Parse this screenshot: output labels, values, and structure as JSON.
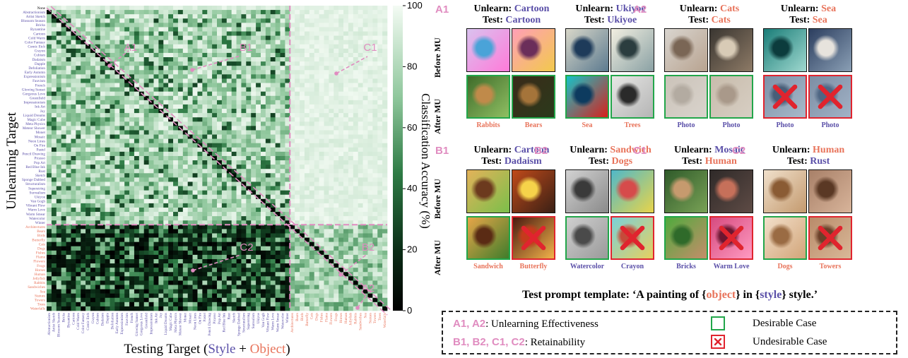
{
  "heatmap": {
    "row_styles": [
      "None",
      "Abstractionism",
      "Artist Sketch",
      "Blossom Season",
      "Bricks",
      "Byzantine",
      "Cartoon",
      "Cold Warm",
      "Color Fantasy",
      "Comic Etch",
      "Crayon",
      "Cubism",
      "Dadaism",
      "Dapple",
      "Defoliation",
      "Early Autumn",
      "Expressionism",
      "Fauvism",
      "French",
      "Glowing Sunset",
      "Gorgeous Love",
      "Greenfield",
      "Impressionism",
      "Ink Art",
      "Joy",
      "Liquid Dreams",
      "Magic Cube",
      "Meta Physics",
      "Meteor Shower",
      "Monet",
      "Mosaic",
      "Neon Lines",
      "On Fire",
      "Pastel",
      "Pencil Drawing",
      "Picasso",
      "Pop Art",
      "Red Blue Ink",
      "Rust",
      "Sketch",
      "Sponge Dabbed",
      "Structuralism",
      "Superstring",
      "Surrealism",
      "Ukiyoe",
      "Van Gogh",
      "Vibrant Flow",
      "Warm Love",
      "Warm Smear",
      "Watercolor",
      "Winter"
    ],
    "row_objects": [
      "Architectures",
      "Bears",
      "Birds",
      "Butterfly",
      "Cats",
      "Dogs",
      "Fishes",
      "Flame",
      "Flowers",
      "Frogs",
      "Horses",
      "Human",
      "Jellyfish",
      "Rabbits",
      "Sandwiches",
      "Sea",
      "Statues",
      "Towers",
      "Trees",
      "Waterfalls"
    ],
    "col_styles": [
      "Abstractionism",
      "Artist Sketch",
      "Blossom Season",
      "Bricks",
      "Byzantine",
      "Cartoon",
      "Cold Warm",
      "Color Fantasy",
      "Comic Etch",
      "Crayon",
      "Cubism",
      "Dadaism",
      "Dapple",
      "Defoliation",
      "Early Autumn",
      "Expressionism",
      "Fauvism",
      "French",
      "Glowing Sunset",
      "Gorgeous Love",
      "Greenfield",
      "Impressionism",
      "Ink Art",
      "Joy",
      "Liquid Dreams",
      "Magic Cube",
      "Meta Physics",
      "Meteor Shower",
      "Monet",
      "Mosaic",
      "Neon Lines",
      "On Fire",
      "Pastel",
      "Pencil Drawing",
      "Picasso",
      "Pop Art",
      "Red Blue Ink",
      "Rust",
      "Sketch",
      "Sponge Dabbed",
      "Structuralism",
      "Superstring",
      "Surrealism",
      "Ukiyoe",
      "Van Gogh",
      "Vibrant Flow",
      "Warm Love",
      "Warm Smear",
      "Watercolor",
      "Winter"
    ],
    "col_objects": [
      "Architectures",
      "Bears",
      "Birds",
      "Butterfly",
      "Cats",
      "Dogs",
      "Fishes",
      "Flame",
      "Flowers",
      "Frogs",
      "Horses",
      "Human",
      "Jellyfish",
      "Rabbits",
      "Sandwiches",
      "Sea",
      "Statues",
      "Towers",
      "Trees",
      "Waterfalls"
    ],
    "ylabel": "Unlearning Target",
    "xlabel_prefix": "Testing Target (",
    "xlabel_style": "Style",
    "xlabel_plus": " + ",
    "xlabel_object": "Object",
    "xlabel_suffix": ")",
    "colorbar_label": "Classification Accuracy (%)",
    "colorbar_ticks": [
      "100",
      "80",
      "60",
      "40",
      "20",
      "0"
    ],
    "annotations": [
      "A1",
      "B1",
      "C1",
      "C2",
      "B2",
      "A2"
    ]
  },
  "chart_data": {
    "type": "heatmap",
    "ylabel": "Unlearning Target",
    "xlabel": "Testing Target (Style + Object)",
    "colorbar": "Classification Accuracy (%)",
    "zlim": [
      0,
      100
    ],
    "note": "rows: None + 50 styles + 20 objects; columns: 50 styles + 20 objects"
  },
  "panels": [
    {
      "tag": "A1",
      "unlearn": "Cartoon",
      "test": "Cartoon",
      "unlearn_color": "blue",
      "test_color": "blue",
      "caps": [
        "Rabbits",
        "Bears"
      ],
      "bad": [
        false,
        false
      ]
    },
    {
      "tag": "",
      "unlearn": "Ukiyoe",
      "test": "Ukiyoe",
      "unlearn_color": "blue",
      "test_color": "blue",
      "caps": [
        "Sea",
        "Trees"
      ],
      "bad": [
        false,
        false
      ]
    },
    {
      "tag": "A2",
      "unlearn": "Cats",
      "test": "Cats",
      "unlearn_color": "red",
      "test_color": "red",
      "caps": [
        "Photo",
        "Photo"
      ],
      "bad": [
        false,
        false
      ]
    },
    {
      "tag": "",
      "unlearn": "Sea",
      "test": "Sea",
      "unlearn_color": "red",
      "test_color": "red",
      "caps": [
        "Photo",
        "Photo"
      ],
      "bad": [
        true,
        true
      ]
    },
    {
      "tag": "B1",
      "unlearn": "Cartoon",
      "test": "Dadaism",
      "unlearn_color": "blue",
      "test_color": "blue",
      "caps": [
        "Sandwich",
        "Butterfly"
      ],
      "bad": [
        false,
        true
      ]
    },
    {
      "tag": "B2",
      "unlearn": "Sandwich",
      "test": "Dogs",
      "unlearn_color": "red",
      "test_color": "red",
      "caps": [
        "Watercolor",
        "Crayon"
      ],
      "bad": [
        false,
        true
      ]
    },
    {
      "tag": "C1",
      "unlearn": "Mosaic",
      "test": "Human",
      "unlearn_color": "blue",
      "test_color": "red",
      "caps": [
        "Bricks",
        "Warm Love"
      ],
      "bad": [
        false,
        true
      ]
    },
    {
      "tag": "C2",
      "unlearn": "Human",
      "test": "Rust",
      "unlearn_color": "red",
      "test_color": "blue",
      "caps": [
        "Dogs",
        "Towers"
      ],
      "bad": [
        false,
        true
      ]
    }
  ],
  "labels": {
    "unlearn": "Unlearn: ",
    "test": "Test: ",
    "before_mu": "Before MU",
    "after_mu": "After MU"
  },
  "template": {
    "prefix": "Test prompt template: ‘A painting of {",
    "object": "object",
    "middle": "} in {",
    "style": "style",
    "suffix": "} style.’"
  },
  "legend": {
    "row1_tags": "A1, A2",
    "row1_text": ": Unlearning Effectiveness",
    "row2_tags": "B1, B2, C1, C2",
    "row2_text": ": Retainability",
    "desirable": "Desirable Case",
    "undesirable": "Undesirable Case"
  },
  "colors": {
    "style_blue": "#5a4fa8",
    "object_red": "#e8735a",
    "tag_pink": "#e08cc0",
    "good_green": "#22a64a",
    "bad_red": "#e0242e"
  }
}
